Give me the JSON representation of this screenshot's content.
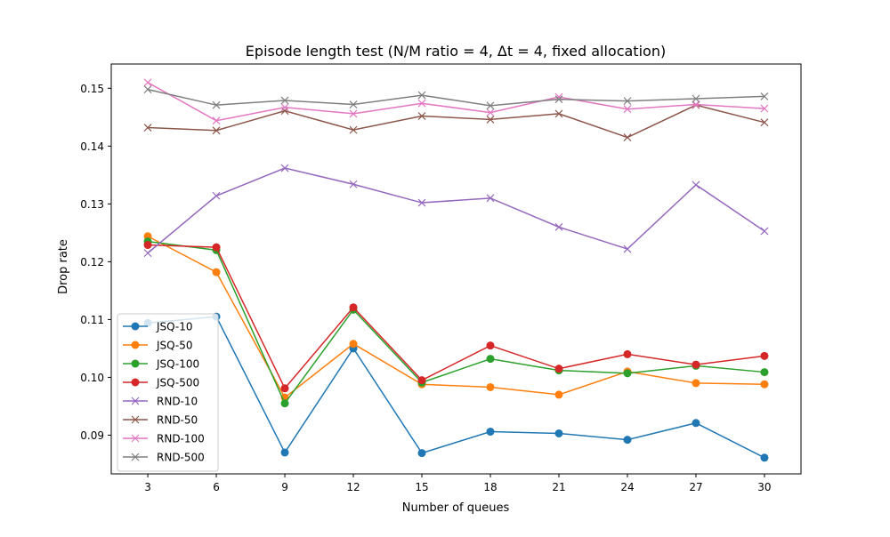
{
  "chart_data": {
    "type": "line",
    "title": "Episode length test (N/M ratio = 4, Δt = 4, fixed allocation)",
    "xlabel": "Number of queues",
    "ylabel": "Drop rate",
    "x": [
      3,
      6,
      9,
      12,
      15,
      18,
      21,
      24,
      27,
      30
    ],
    "xlim": [
      1.4,
      31.6
    ],
    "ylim": [
      0.0833,
      0.1542
    ],
    "xticks": [
      "3",
      "6",
      "9",
      "12",
      "15",
      "18",
      "21",
      "24",
      "27",
      "30"
    ],
    "yticks": [
      {
        "value": 0.09,
        "label": "0.09"
      },
      {
        "value": 0.1,
        "label": "0.10"
      },
      {
        "value": 0.11,
        "label": "0.11"
      },
      {
        "value": 0.12,
        "label": "0.12"
      },
      {
        "value": 0.13,
        "label": "0.13"
      },
      {
        "value": 0.14,
        "label": "0.14"
      },
      {
        "value": 0.15,
        "label": "0.15"
      }
    ],
    "grid": false,
    "legend_position": "lower-left",
    "series": [
      {
        "name": "JSQ-10",
        "marker": "circle",
        "color": "#1f77b4",
        "values": [
          0.1094,
          0.1105,
          0.087,
          0.105,
          0.0869,
          0.0906,
          0.0903,
          0.0892,
          0.0921,
          0.0861
        ]
      },
      {
        "name": "JSQ-50",
        "marker": "circle",
        "color": "#ff7f0e",
        "values": [
          0.1244,
          0.1182,
          0.0965,
          0.1058,
          0.0988,
          0.0983,
          0.097,
          0.101,
          0.099,
          0.0988
        ]
      },
      {
        "name": "JSQ-100",
        "marker": "circle",
        "color": "#2ca02c",
        "values": [
          0.1235,
          0.122,
          0.0955,
          0.1117,
          0.0991,
          0.1032,
          0.1012,
          0.1007,
          0.102,
          0.1009
        ]
      },
      {
        "name": "JSQ-500",
        "marker": "circle",
        "color": "#d62728",
        "values": [
          0.1229,
          0.1225,
          0.0981,
          0.1121,
          0.0995,
          0.1055,
          0.1015,
          0.104,
          0.1022,
          0.1037
        ]
      },
      {
        "name": "RND-10",
        "marker": "x",
        "color": "#9467bd",
        "values": [
          0.1215,
          0.1314,
          0.1362,
          0.1334,
          0.1302,
          0.131,
          0.126,
          0.1222,
          0.1333,
          0.1253
        ]
      },
      {
        "name": "RND-50",
        "marker": "x",
        "color": "#8c564b",
        "values": [
          0.1432,
          0.1427,
          0.1461,
          0.1428,
          0.1452,
          0.1446,
          0.1456,
          0.1415,
          0.1471,
          0.1441
        ]
      },
      {
        "name": "RND-100",
        "marker": "x",
        "color": "#e377c2",
        "values": [
          0.151,
          0.1444,
          0.1467,
          0.1456,
          0.1474,
          0.1458,
          0.1485,
          0.1464,
          0.1472,
          0.1465
        ]
      },
      {
        "name": "RND-500",
        "marker": "x",
        "color": "#7f7f7f",
        "values": [
          0.1498,
          0.1471,
          0.1479,
          0.1472,
          0.1488,
          0.147,
          0.1481,
          0.1478,
          0.1482,
          0.1486
        ]
      }
    ]
  }
}
